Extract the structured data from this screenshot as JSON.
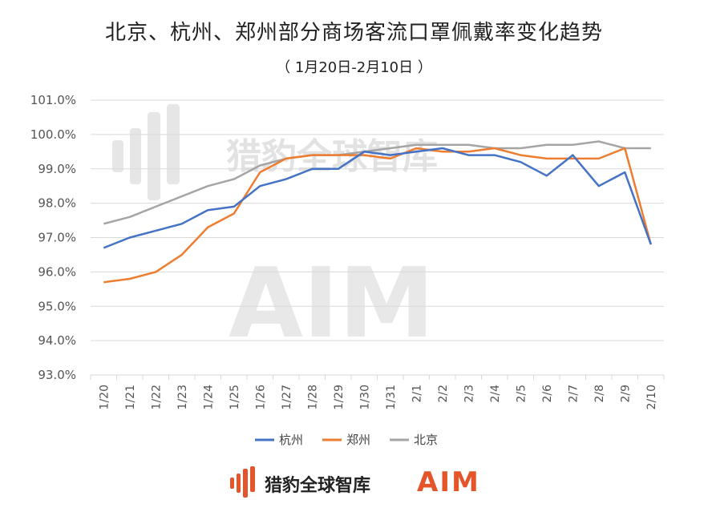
{
  "title": "北京、杭州、郑州部分商场客流口罩佩戴率变化趋势",
  "subtitle": "（ 1月20日-2月10日 ）",
  "watermark": {
    "brand": "猎豹全球智库",
    "aim": "AIM"
  },
  "footer": {
    "brand": "猎豹全球智库",
    "aim": "AIM"
  },
  "colors": {
    "hangzhou": "#4472c4",
    "zhengzhou": "#ed7d31",
    "beijing": "#a5a5a5",
    "grid": "#d9d9d9",
    "accent": "#e4552a"
  },
  "chart_data": {
    "type": "line",
    "title": "北京、杭州、郑州部分商场客流口罩佩戴率变化趋势",
    "subtitle": "（ 1月20日-2月10日 ）",
    "categories": [
      "1/20",
      "1/21",
      "1/22",
      "1/23",
      "1/24",
      "1/25",
      "1/26",
      "1/27",
      "1/28",
      "1/29",
      "1/30",
      "1/31",
      "2/1",
      "2/2",
      "2/3",
      "2/4",
      "2/5",
      "2/6",
      "2/7",
      "2/8",
      "2/9",
      "2/10"
    ],
    "ylim": [
      93.0,
      101.0
    ],
    "yticks": [
      "93.0%",
      "94.0%",
      "95.0%",
      "96.0%",
      "97.0%",
      "98.0%",
      "99.0%",
      "100.0%",
      "101.0%"
    ],
    "grid": true,
    "legend_position": "bottom",
    "series": [
      {
        "name": "杭州",
        "values": [
          96.7,
          97.0,
          97.2,
          97.4,
          97.8,
          97.9,
          98.5,
          98.7,
          99.0,
          99.0,
          99.5,
          99.4,
          99.5,
          99.6,
          99.4,
          99.4,
          99.2,
          98.8,
          99.4,
          98.5,
          98.9,
          96.8
        ]
      },
      {
        "name": "郑州",
        "values": [
          95.7,
          95.8,
          96.0,
          96.5,
          97.3,
          97.7,
          98.9,
          99.3,
          99.4,
          99.4,
          99.4,
          99.3,
          99.6,
          99.5,
          99.5,
          99.6,
          99.4,
          99.3,
          99.3,
          99.3,
          99.6,
          96.8
        ]
      },
      {
        "name": "北京",
        "values": [
          97.4,
          97.6,
          97.9,
          98.2,
          98.5,
          98.7,
          99.1,
          99.3,
          99.4,
          99.4,
          99.5,
          99.6,
          99.7,
          99.7,
          99.7,
          99.6,
          99.6,
          99.7,
          99.7,
          99.8,
          99.6,
          99.6
        ]
      }
    ]
  }
}
